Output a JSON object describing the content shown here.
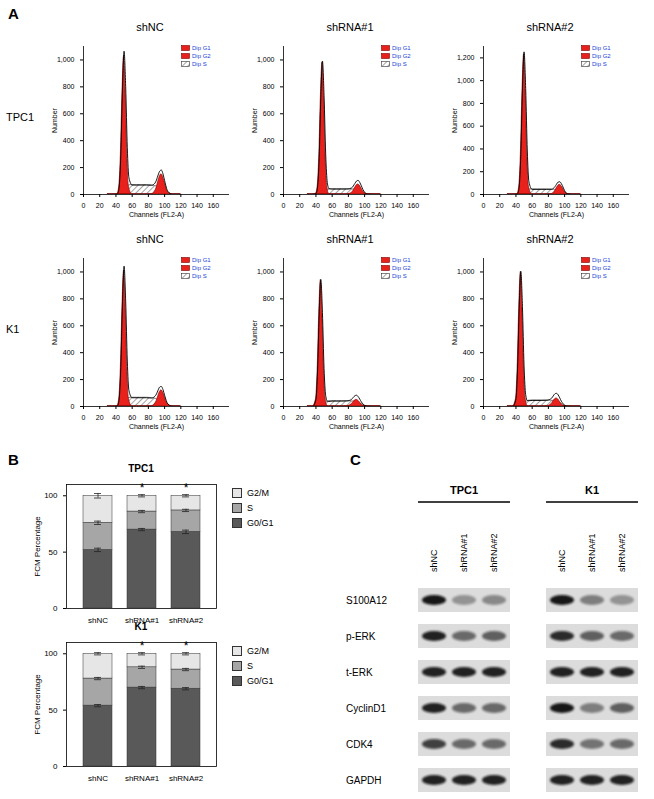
{
  "chart_data": [
    {
      "type": "area",
      "panel": "A",
      "columns": [
        "shNC",
        "shRNA#1",
        "shRNA#2"
      ],
      "rows": [
        "TPC1",
        "K1"
      ],
      "x_label": "Channels (FL2-A)",
      "y_label": "Number",
      "legend": "top-right",
      "xlim": [
        0,
        180
      ],
      "xticks": [
        0,
        20,
        40,
        60,
        80,
        100,
        120,
        140,
        160
      ],
      "x": [
        30,
        36,
        40,
        42,
        44,
        46,
        48,
        50,
        52,
        54,
        56,
        60,
        66,
        72,
        78,
        84,
        88,
        90,
        92,
        94,
        96,
        98,
        100,
        104,
        110,
        120
      ],
      "series": [
        {
          "name": "Dip G1",
          "color": "#e8211c",
          "type": "area"
        },
        {
          "name": "Dip G2",
          "color": "#e8211c",
          "type": "area"
        },
        {
          "name": "Dip S",
          "color": "#333333",
          "type": "area",
          "line_style": "hatched"
        },
        {
          "color": "#000000",
          "type": "line"
        }
      ],
      "panels": [
        {
          "ylim": [
            0,
            1100
          ],
          "yticks": [
            0,
            200,
            400,
            600,
            800,
            1000
          ],
          "values": [
            [
              0,
              0,
              0,
              6,
              58,
              288,
              752,
              1030,
              752,
              288,
              58,
              0,
              0,
              0,
              0,
              0,
              0,
              0,
              0,
              0,
              0,
              0,
              0,
              0,
              0,
              0
            ],
            [
              0,
              0,
              0,
              0,
              0,
              0,
              0,
              0,
              0,
              0,
              0,
              0,
              0,
              0,
              0,
              2,
              21,
              48,
              92,
              132,
              150,
              132,
              92,
              21,
              0,
              0
            ],
            [
              0,
              0,
              0,
              0,
              0,
              7,
              21,
              35,
              49,
              60,
              67,
              70,
              70,
              70,
              70,
              67,
              63,
              60,
              53,
              42,
              32,
              21,
              11,
              2,
              0,
              0
            ],
            [
              0,
              0,
              0,
              6,
              58,
              295,
              773,
              1065,
              801,
              348,
              125,
              70,
              70,
              70,
              70,
              69,
              84,
              108,
              145,
              174,
              182,
              153,
              103,
              23,
              0,
              0
            ]
          ]
        },
        {
          "ylim": [
            0,
            1100
          ],
          "yticks": [
            0,
            200,
            400,
            600,
            800,
            1000
          ],
          "values": [
            [
              0,
              0,
              6,
              55,
              274,
              715,
              980,
              715,
              274,
              55,
              6,
              0,
              0,
              0,
              0,
              0,
              0,
              0,
              0,
              0,
              0,
              0,
              0,
              0,
              0,
              0
            ],
            [
              0,
              0,
              0,
              0,
              0,
              0,
              0,
              0,
              0,
              0,
              0,
              0,
              0,
              0,
              0,
              11,
              46,
              66,
              75,
              66,
              46,
              24,
              11,
              1,
              0,
              0
            ],
            [
              0,
              0,
              0,
              0,
              0,
              4,
              12,
              20,
              28,
              34,
              38,
              40,
              40,
              40,
              40,
              38,
              36,
              34,
              30,
              24,
              18,
              12,
              6,
              1,
              0,
              0
            ],
            [
              0,
              0,
              6,
              55,
              274,
              719,
              992,
              735,
              302,
              89,
              44,
              40,
              40,
              40,
              40,
              49,
              82,
              100,
              105,
              90,
              64,
              36,
              17,
              2,
              0,
              0
            ]
          ]
        },
        {
          "ylim": [
            0,
            1300
          ],
          "yticks": [
            0,
            200,
            400,
            600,
            800,
            1000,
            1200
          ],
          "values": [
            [
              0,
              0,
              0,
              7,
              69,
              344,
              898,
              1230,
              898,
              344,
              69,
              0,
              0,
              0,
              0,
              0,
              0,
              0,
              0,
              0,
              0,
              0,
              0,
              0,
              0,
              0
            ],
            [
              0,
              0,
              0,
              0,
              0,
              0,
              0,
              0,
              0,
              0,
              0,
              0,
              0,
              0,
              0,
              3,
              27,
              52,
              75,
              85,
              75,
              52,
              27,
              3,
              0,
              0
            ],
            [
              0,
              0,
              0,
              0,
              0,
              5,
              14,
              23,
              32,
              38,
              43,
              45,
              45,
              45,
              45,
              43,
              41,
              38,
              34,
              27,
              20,
              14,
              7,
              1,
              0,
              0
            ],
            [
              0,
              0,
              0,
              7,
              69,
              349,
              912,
              1253,
              930,
              382,
              112,
              45,
              45,
              45,
              45,
              46,
              68,
              90,
              109,
              112,
              95,
              66,
              34,
              4,
              0,
              0
            ]
          ]
        },
        {
          "ylim": [
            0,
            1100
          ],
          "yticks": [
            0,
            200,
            400,
            600,
            800,
            1000
          ],
          "values": [
            [
              0,
              0,
              0,
              6,
              57,
              283,
              737,
              1010,
              737,
              283,
              57,
              0,
              0,
              0,
              0,
              0,
              0,
              0,
              0,
              0,
              0,
              0,
              0,
              0,
              0,
              0
            ],
            [
              0,
              0,
              0,
              0,
              0,
              0,
              0,
              0,
              0,
              0,
              0,
              0,
              0,
              0,
              0,
              1,
              17,
              38,
              73,
              106,
              120,
              106,
              73,
              17,
              0,
              0
            ],
            [
              0,
              0,
              0,
              0,
              0,
              7,
              20,
              33,
              46,
              55,
              62,
              65,
              65,
              65,
              65,
              62,
              59,
              55,
              49,
              39,
              29,
              20,
              10,
              2,
              0,
              0
            ],
            [
              0,
              0,
              0,
              6,
              57,
              290,
              757,
              1043,
              783,
              338,
              119,
              65,
              65,
              65,
              65,
              63,
              76,
              93,
              122,
              145,
              149,
              126,
              83,
              19,
              0,
              0
            ]
          ]
        },
        {
          "ylim": [
            0,
            1100
          ],
          "yticks": [
            0,
            200,
            400,
            600,
            800,
            1000
          ],
          "values": [
            [
              0,
              0,
              53,
              263,
              686,
              940,
              686,
              263,
              53,
              6,
              0,
              0,
              0,
              0,
              0,
              0,
              0,
              0,
              0,
              0,
              0,
              0,
              0,
              0,
              0,
              0
            ],
            [
              0,
              0,
              0,
              0,
              0,
              0,
              0,
              0,
              0,
              0,
              0,
              0,
              0,
              0,
              1,
              16,
              44,
              50,
              44,
              31,
              16,
              7,
              2,
              0,
              0,
              0
            ],
            [
              0,
              0,
              0,
              0,
              0,
              4,
              12,
              20,
              28,
              34,
              38,
              40,
              40,
              40,
              40,
              38,
              36,
              34,
              30,
              24,
              18,
              12,
              6,
              1,
              0,
              0
            ],
            [
              0,
              0,
              53,
              263,
              686,
              944,
              698,
              283,
              81,
              40,
              38,
              40,
              40,
              40,
              41,
              54,
              80,
              84,
              74,
              55,
              34,
              19,
              8,
              1,
              0,
              0
            ]
          ]
        },
        {
          "ylim": [
            0,
            1100
          ],
          "yticks": [
            0,
            200,
            400,
            600,
            800,
            1000
          ],
          "values": [
            [
              0,
              0,
              56,
              280,
              730,
              1000,
              730,
              280,
              56,
              6,
              0,
              0,
              0,
              0,
              0,
              0,
              0,
              0,
              0,
              0,
              0,
              0,
              0,
              0,
              0,
              0
            ],
            [
              0,
              0,
              0,
              0,
              0,
              0,
              0,
              0,
              0,
              0,
              0,
              0,
              0,
              0,
              1,
              19,
              53,
              60,
              53,
              37,
              19,
              8,
              2,
              0,
              0,
              0
            ],
            [
              0,
              0,
              0,
              0,
              0,
              5,
              14,
              23,
              32,
              38,
              43,
              45,
              45,
              45,
              45,
              43,
              41,
              38,
              34,
              27,
              20,
              14,
              7,
              1,
              0,
              0
            ],
            [
              0,
              0,
              56,
              280,
              730,
              1005,
              744,
              303,
              88,
              44,
              43,
              45,
              45,
              45,
              46,
              62,
              94,
              98,
              87,
              64,
              39,
              22,
              9,
              1,
              0,
              0
            ]
          ]
        }
      ]
    },
    {
      "type": "bar",
      "panel": "B",
      "stacked": true,
      "legend": "right",
      "y_label": "FCM Percentage",
      "categories": [
        "shNC",
        "shRNA#1",
        "shRNA#2"
      ],
      "ylim": [
        0,
        110
      ],
      "yticks": [
        0,
        50,
        100
      ],
      "charts": [
        {
          "title": "TPC1",
          "series": [
            {
              "name": "G0/G1",
              "color": "#595959",
              "values": [
                52,
                70,
                68
              ],
              "errors": [
                1.5,
                1,
                1.5
              ]
            },
            {
              "name": "S",
              "color": "#a6a6a6",
              "values": [
                24,
                16,
                19
              ],
              "errors": [
                1.5,
                1,
                1
              ]
            },
            {
              "name": "G2/M",
              "color": "#e6e6e6",
              "values": [
                24,
                14,
                13
              ],
              "errors": [
                2,
                1,
                1
              ]
            }
          ],
          "annotations": [
            {
              "category": "shRNA#1",
              "text": "*"
            },
            {
              "category": "shRNA#2",
              "text": "*"
            }
          ]
        },
        {
          "title": "K1",
          "series": [
            {
              "name": "G0/G1",
              "color": "#595959",
              "values": [
                54,
                70,
                69
              ],
              "errors": [
                1,
                1,
                1
              ]
            },
            {
              "name": "S",
              "color": "#a6a6a6",
              "values": [
                24,
                18,
                17
              ],
              "errors": [
                1,
                1,
                1
              ]
            },
            {
              "name": "G2/M",
              "color": "#e6e6e6",
              "values": [
                22,
                12,
                14
              ],
              "errors": [
                1,
                1,
                1
              ]
            }
          ],
          "annotations": [
            {
              "category": "shRNA#1",
              "text": "*"
            },
            {
              "category": "shRNA#2",
              "text": "*"
            }
          ]
        }
      ]
    }
  ],
  "western_blot": {
    "panel": "C",
    "cell_lines": [
      "TPC1",
      "K1"
    ],
    "lanes": [
      "shNC",
      "shRNA#1",
      "shRNA#2"
    ],
    "proteins": [
      "S100A12",
      "p-ERK",
      "t-ERK",
      "CyclinD1",
      "CDK4",
      "GAPDH"
    ],
    "band_intensity": {
      "TPC1": [
        [
          0.95,
          0.35,
          0.4
        ],
        [
          0.9,
          0.55,
          0.6
        ],
        [
          0.9,
          0.9,
          0.9
        ],
        [
          0.9,
          0.55,
          0.55
        ],
        [
          0.75,
          0.55,
          0.55
        ],
        [
          0.9,
          0.9,
          0.9
        ]
      ],
      "K1": [
        [
          0.95,
          0.45,
          0.35
        ],
        [
          0.85,
          0.6,
          0.55
        ],
        [
          0.9,
          0.9,
          0.9
        ],
        [
          0.95,
          0.45,
          0.6
        ],
        [
          0.85,
          0.5,
          0.55
        ],
        [
          0.9,
          0.9,
          0.9
        ]
      ]
    }
  }
}
